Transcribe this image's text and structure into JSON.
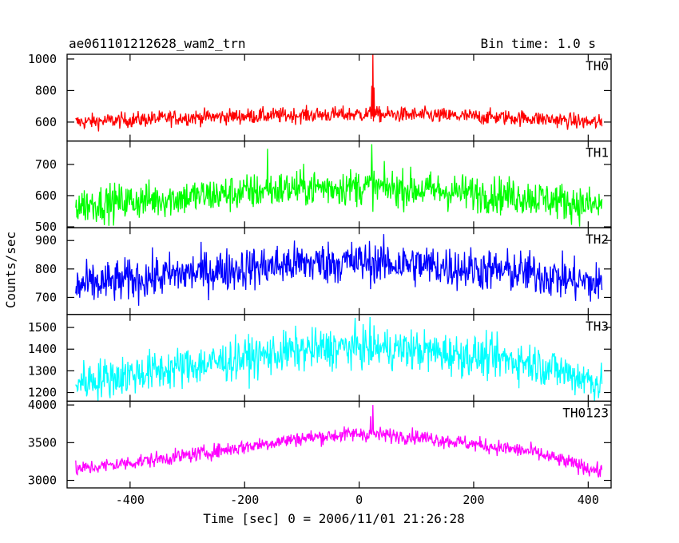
{
  "chart_data": {
    "type": "line",
    "title": "ae061101212628_wam2_trn",
    "subtitle": "Bin time: 1.0 s",
    "xlabel": "Time [sec] 0 = 2006/11/01 21:26:28",
    "ylabel": "Counts/sec",
    "xlim": [
      -510,
      440
    ],
    "xticks": [
      -400,
      -200,
      0,
      200,
      400
    ],
    "panels": [
      {
        "name": "TH0",
        "color": "#ff0000",
        "ylim": [
          480,
          1030
        ],
        "yticks": [
          600,
          800,
          1000
        ],
        "shape": {
          "x": [
            -490,
            -300,
            -100,
            0,
            100,
            300,
            420
          ],
          "y": [
            600,
            630,
            645,
            650,
            645,
            625,
            595
          ]
        },
        "noise": 25,
        "spikes": [
          {
            "x": 24,
            "y": 1030
          },
          {
            "x": 22,
            "y": 830
          },
          {
            "x": 26,
            "y": 820
          }
        ]
      },
      {
        "name": "TH1",
        "color": "#00ff00",
        "ylim": [
          497,
          775
        ],
        "yticks": [
          500,
          600,
          700
        ],
        "shape": {
          "x": [
            -490,
            -300,
            -100,
            0,
            100,
            300,
            420
          ],
          "y": [
            570,
            595,
            625,
            628,
            620,
            595,
            565
          ]
        },
        "noise": 30,
        "spikes": [
          {
            "x": -160,
            "y": 750
          },
          {
            "x": 22,
            "y": 765
          }
        ]
      },
      {
        "name": "TH2",
        "color": "#0000ff",
        "ylim": [
          640,
          945
        ],
        "yticks": [
          700,
          800,
          900
        ],
        "shape": {
          "x": [
            -490,
            -300,
            -100,
            0,
            100,
            300,
            420
          ],
          "y": [
            740,
            785,
            820,
            825,
            815,
            785,
            745
          ]
        },
        "noise": 38,
        "spikes": []
      },
      {
        "name": "TH3",
        "color": "#00ffff",
        "ylim": [
          1160,
          1560
        ],
        "yticks": [
          1200,
          1300,
          1400,
          1500
        ],
        "shape": {
          "x": [
            -490,
            -300,
            -100,
            0,
            100,
            300,
            420
          ],
          "y": [
            1250,
            1320,
            1395,
            1410,
            1395,
            1340,
            1245
          ]
        },
        "noise": 48,
        "spikes": []
      },
      {
        "name": "TH0123",
        "color": "#ff00ff",
        "ylim": [
          2900,
          4050
        ],
        "yticks": [
          3000,
          3500,
          4000
        ],
        "shape": {
          "x": [
            -490,
            -300,
            -100,
            0,
            100,
            300,
            420
          ],
          "y": [
            3150,
            3330,
            3560,
            3620,
            3580,
            3380,
            3120
          ]
        },
        "noise": 50,
        "spikes": [
          {
            "x": 24,
            "y": 4000
          },
          {
            "x": 20,
            "y": 3850
          }
        ]
      }
    ]
  }
}
